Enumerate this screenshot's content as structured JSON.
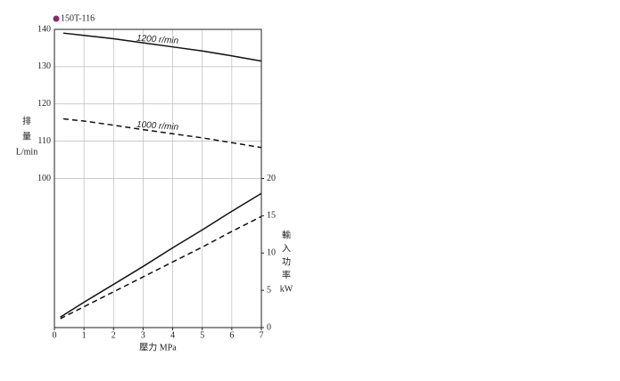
{
  "chart_data": {
    "type": "line",
    "title": "150T-116",
    "xlabel": "壓力 MPa",
    "ylabel_lines": [
      "排",
      "量",
      "L/min"
    ],
    "y2label_lines": [
      "輸",
      "入",
      "功",
      "率",
      "kW"
    ],
    "annotations": [
      "1200 r/min",
      "1000 r/min"
    ],
    "xlim": [
      0,
      7
    ],
    "xticks": [
      0,
      1,
      2,
      3,
      4,
      5,
      6,
      7
    ],
    "ylim": [
      60,
      140
    ],
    "yticks": [
      100,
      110,
      120,
      130,
      140
    ],
    "y2lim": [
      0,
      40
    ],
    "y2ticks": [
      0,
      5,
      10,
      15,
      20
    ],
    "grid": true,
    "series": [
      {
        "color": "#111",
        "dash": false,
        "x": [
          0.3,
          1,
          2,
          3,
          4,
          5,
          6,
          7
        ],
        "values": [
          139,
          138.4,
          137.5,
          136.4,
          135.3,
          134.2,
          132.9,
          131.5
        ]
      },
      {
        "color": "#111",
        "dash": true,
        "x": [
          0.3,
          1,
          2,
          3,
          4,
          5,
          6,
          7
        ],
        "values": [
          116,
          115.4,
          114.3,
          113.1,
          112,
          110.9,
          109.6,
          108.3
        ]
      },
      {
        "color": "#111",
        "dash": false,
        "axis": "y2",
        "x": [
          0.2,
          1,
          2,
          3,
          4,
          5,
          6,
          7
        ],
        "values": [
          1.4,
          3.4,
          5.8,
          8.2,
          10.7,
          13.1,
          15.6,
          18.0
        ]
      },
      {
        "color": "#111",
        "dash": true,
        "axis": "y2",
        "x": [
          0.2,
          1,
          2,
          3,
          4,
          5,
          6,
          7
        ],
        "values": [
          1.2,
          2.8,
          4.8,
          6.8,
          8.8,
          10.8,
          12.9,
          14.9
        ]
      }
    ]
  }
}
